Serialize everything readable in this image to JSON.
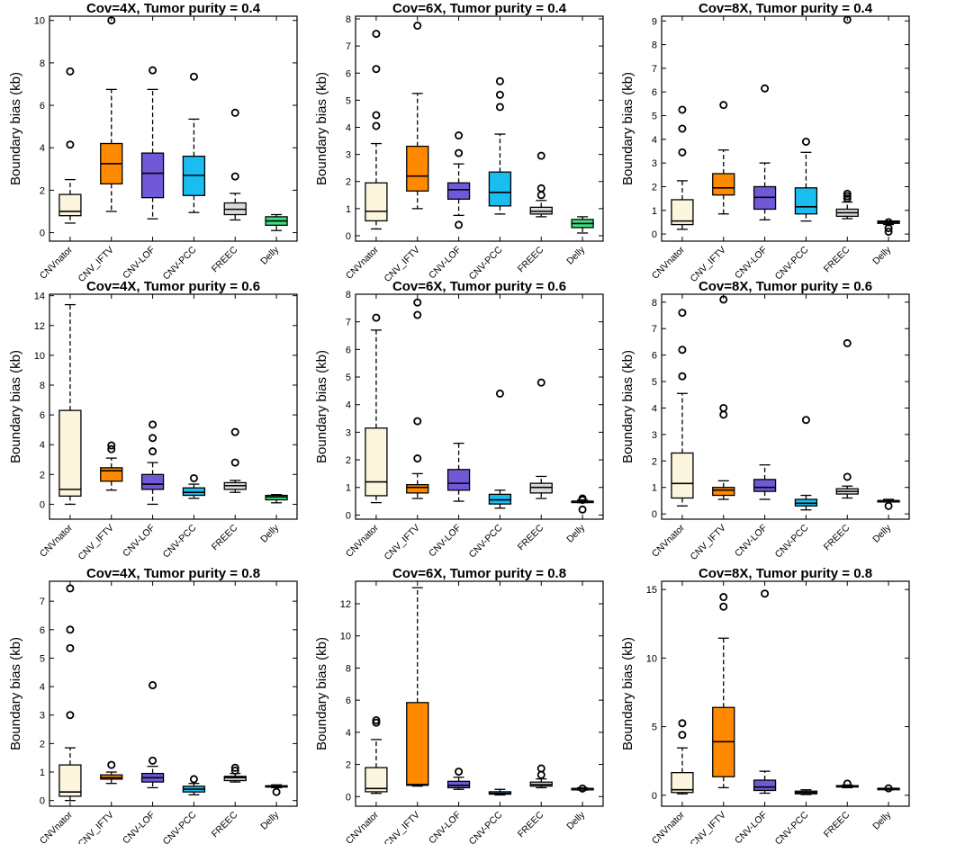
{
  "colors": {
    "CNVnator": "#fdf6df",
    "CNV_IFTV": "#ff8a00",
    "CNV-LOF": "#7158d6",
    "CNV-PCC": "#19bdf0",
    "FREEC": "#dcdcdc",
    "Delly": "#3de07c"
  },
  "chart_data": [
    {
      "type": "box",
      "title": "Cov=4X, Tumor purity = 0.4",
      "ylabel": "Boundary bias (kb)",
      "ylim": [
        -0.4,
        10.2
      ],
      "yticks": [
        0,
        2,
        4,
        6,
        8,
        10
      ],
      "categories": [
        "CNVnator",
        "CNV_IFTV",
        "CNV-LOF",
        "CNV-PCC",
        "FREEC",
        "Delly"
      ],
      "boxes": [
        {
          "min": 0.45,
          "q1": 0.8,
          "median": 1.0,
          "q3": 1.8,
          "max": 2.5,
          "outliers": [
            4.15,
            7.6
          ]
        },
        {
          "min": 1.0,
          "q1": 2.3,
          "median": 3.25,
          "q3": 4.2,
          "max": 6.75,
          "outliers": [
            10.0
          ]
        },
        {
          "min": 0.65,
          "q1": 1.65,
          "median": 2.8,
          "q3": 3.75,
          "max": 6.75,
          "outliers": [
            7.65
          ]
        },
        {
          "min": 0.95,
          "q1": 1.75,
          "median": 2.7,
          "q3": 3.6,
          "max": 5.35,
          "outliers": [
            7.35
          ]
        },
        {
          "min": 0.6,
          "q1": 0.85,
          "median": 1.1,
          "q3": 1.4,
          "max": 1.85,
          "outliers": [
            2.65,
            5.65
          ]
        },
        {
          "min": 0.1,
          "q1": 0.35,
          "median": 0.55,
          "q3": 0.75,
          "max": 0.85,
          "outliers": []
        }
      ]
    },
    {
      "type": "box",
      "title": "Cov=6X, Tumor purity = 0.4",
      "ylabel": "Boundary bias (kb)",
      "ylim": [
        -0.2,
        8.1
      ],
      "yticks": [
        0,
        1,
        2,
        3,
        4,
        5,
        6,
        7,
        8
      ],
      "categories": [
        "CNVnator",
        "CNV_IFTV",
        "CNV-LOF",
        "CNV-PCC",
        "FREEC",
        "Delly"
      ],
      "boxes": [
        {
          "min": 0.25,
          "q1": 0.55,
          "median": 0.9,
          "q3": 1.95,
          "max": 3.4,
          "outliers": [
            4.05,
            4.45,
            6.15,
            7.45
          ]
        },
        {
          "min": 1.0,
          "q1": 1.65,
          "median": 2.2,
          "q3": 3.3,
          "max": 5.25,
          "outliers": [
            7.75
          ]
        },
        {
          "min": 0.75,
          "q1": 1.35,
          "median": 1.7,
          "q3": 1.95,
          "max": 2.65,
          "outliers": [
            0.4,
            3.05,
            3.7
          ]
        },
        {
          "min": 0.8,
          "q1": 1.1,
          "median": 1.6,
          "q3": 2.35,
          "max": 3.75,
          "outliers": [
            4.75,
            5.2,
            5.7
          ]
        },
        {
          "min": 0.7,
          "q1": 0.8,
          "median": 0.9,
          "q3": 1.05,
          "max": 1.3,
          "outliers": [
            1.5,
            1.75,
            2.95
          ]
        },
        {
          "min": 0.1,
          "q1": 0.3,
          "median": 0.45,
          "q3": 0.6,
          "max": 0.7,
          "outliers": []
        }
      ]
    },
    {
      "type": "box",
      "title": "Cov=8X, Tumor purity = 0.4",
      "ylabel": "Boundary bias (kb)",
      "ylim": [
        -0.3,
        9.2
      ],
      "yticks": [
        0,
        1,
        2,
        3,
        4,
        5,
        6,
        7,
        8,
        9
      ],
      "categories": [
        "CNVnator",
        "CNV_IFTV",
        "CNV-LOF",
        "CNV-PCC",
        "FREEC",
        "Delly"
      ],
      "boxes": [
        {
          "min": 0.2,
          "q1": 0.4,
          "median": 0.55,
          "q3": 1.45,
          "max": 2.25,
          "outliers": [
            3.45,
            4.45,
            5.25
          ]
        },
        {
          "min": 0.85,
          "q1": 1.65,
          "median": 1.95,
          "q3": 2.55,
          "max": 3.55,
          "outliers": [
            5.45
          ]
        },
        {
          "min": 0.6,
          "q1": 1.05,
          "median": 1.55,
          "q3": 2.0,
          "max": 3.0,
          "outliers": [
            6.15
          ]
        },
        {
          "min": 0.55,
          "q1": 0.85,
          "median": 1.15,
          "q3": 1.95,
          "max": 3.45,
          "outliers": [
            3.9
          ]
        },
        {
          "min": 0.65,
          "q1": 0.75,
          "median": 0.9,
          "q3": 1.05,
          "max": 1.35,
          "outliers": [
            1.5,
            1.6,
            1.7,
            9.05
          ]
        },
        {
          "min": 0.4,
          "q1": 0.45,
          "median": 0.5,
          "q3": 0.55,
          "max": 0.55,
          "outliers": [
            0.1,
            0.25,
            0.5
          ]
        }
      ]
    },
    {
      "type": "box",
      "title": "Cov=4X, Tumor purity = 0.6",
      "ylabel": "Boundary bias (kb)",
      "ylim": [
        -1.0,
        14.1
      ],
      "yticks": [
        0,
        2,
        4,
        6,
        8,
        10,
        12,
        14
      ],
      "categories": [
        "CNVnator",
        "CNV_IFTV",
        "CNV-LOF",
        "CNV-PCC",
        "FREEC",
        "Delly"
      ],
      "boxes": [
        {
          "min": 0.0,
          "q1": 0.55,
          "median": 1.0,
          "q3": 6.3,
          "max": 13.4,
          "outliers": []
        },
        {
          "min": 0.95,
          "q1": 1.55,
          "median": 2.25,
          "q3": 2.45,
          "max": 3.1,
          "outliers": [
            3.7,
            3.95
          ]
        },
        {
          "min": 0.0,
          "q1": 1.0,
          "median": 1.35,
          "q3": 2.0,
          "max": 2.8,
          "outliers": [
            3.55,
            4.45,
            5.35
          ]
        },
        {
          "min": 0.4,
          "q1": 0.6,
          "median": 0.8,
          "q3": 1.1,
          "max": 1.35,
          "outliers": [
            1.75
          ]
        },
        {
          "min": 0.8,
          "q1": 1.0,
          "median": 1.25,
          "q3": 1.45,
          "max": 1.6,
          "outliers": [
            2.8,
            4.85
          ]
        },
        {
          "min": 0.1,
          "q1": 0.3,
          "median": 0.5,
          "q3": 0.6,
          "max": 0.65,
          "outliers": []
        }
      ]
    },
    {
      "type": "box",
      "title": "Cov=6X, Tumor purity = 0.6",
      "ylabel": "Boundary bias (kb)",
      "ylim": [
        -0.15,
        8.0
      ],
      "yticks": [
        0,
        1,
        2,
        3,
        4,
        5,
        6,
        7,
        8
      ],
      "categories": [
        "CNVnator",
        "CNV_IFTV",
        "CNV-LOF",
        "CNV-PCC",
        "FREEC",
        "Delly"
      ],
      "boxes": [
        {
          "min": 0.45,
          "q1": 0.7,
          "median": 1.2,
          "q3": 3.15,
          "max": 6.7,
          "outliers": [
            7.15
          ]
        },
        {
          "min": 0.6,
          "q1": 0.8,
          "median": 1.0,
          "q3": 1.1,
          "max": 1.5,
          "outliers": [
            2.05,
            3.4,
            7.25,
            7.7
          ]
        },
        {
          "min": 0.5,
          "q1": 0.9,
          "median": 1.15,
          "q3": 1.65,
          "max": 2.6,
          "outliers": []
        },
        {
          "min": 0.25,
          "q1": 0.4,
          "median": 0.55,
          "q3": 0.75,
          "max": 0.9,
          "outliers": [
            4.4
          ]
        },
        {
          "min": 0.6,
          "q1": 0.8,
          "median": 1.0,
          "q3": 1.15,
          "max": 1.4,
          "outliers": [
            4.8
          ]
        },
        {
          "min": 0.45,
          "q1": 0.5,
          "median": 0.5,
          "q3": 0.5,
          "max": 0.55,
          "outliers": [
            0.2,
            0.55,
            0.6
          ]
        }
      ]
    },
    {
      "type": "box",
      "title": "Cov=8X, Tumor purity = 0.6",
      "ylabel": "Boundary bias (kb)",
      "ylim": [
        -0.2,
        8.3
      ],
      "yticks": [
        0,
        1,
        2,
        3,
        4,
        5,
        6,
        7,
        8
      ],
      "categories": [
        "CNVnator",
        "CNV_IFTV",
        "CNV-LOF",
        "CNV-PCC",
        "FREEC",
        "Delly"
      ],
      "boxes": [
        {
          "min": 0.3,
          "q1": 0.6,
          "median": 1.15,
          "q3": 2.3,
          "max": 4.55,
          "outliers": [
            5.2,
            6.2,
            7.6
          ]
        },
        {
          "min": 0.55,
          "q1": 0.7,
          "median": 0.9,
          "q3": 1.0,
          "max": 1.25,
          "outliers": [
            3.75,
            4.0,
            8.1
          ]
        },
        {
          "min": 0.55,
          "q1": 0.85,
          "median": 1.0,
          "q3": 1.3,
          "max": 1.85,
          "outliers": []
        },
        {
          "min": 0.15,
          "q1": 0.3,
          "median": 0.4,
          "q3": 0.55,
          "max": 0.7,
          "outliers": [
            3.55
          ]
        },
        {
          "min": 0.6,
          "q1": 0.75,
          "median": 0.85,
          "q3": 0.95,
          "max": 1.05,
          "outliers": [
            1.4,
            6.45
          ]
        },
        {
          "min": 0.45,
          "q1": 0.5,
          "median": 0.5,
          "q3": 0.5,
          "max": 0.55,
          "outliers": [
            0.3
          ]
        }
      ]
    },
    {
      "type": "box",
      "title": "Cov=4X, Tumor purity = 0.8",
      "ylabel": "Boundary bias (kb)",
      "ylim": [
        -0.2,
        7.7
      ],
      "yticks": [
        0,
        1,
        2,
        3,
        4,
        5,
        6,
        7
      ],
      "categories": [
        "CNVnator",
        "CNV_IFTV",
        "CNV-LOF",
        "CNV-PCC",
        "FREEC",
        "Delly"
      ],
      "boxes": [
        {
          "min": 0.0,
          "q1": 0.15,
          "median": 0.3,
          "q3": 1.25,
          "max": 1.85,
          "outliers": [
            3.0,
            5.35,
            6.0,
            7.45
          ]
        },
        {
          "min": 0.6,
          "q1": 0.75,
          "median": 0.8,
          "q3": 0.9,
          "max": 1.0,
          "outliers": [
            1.25
          ]
        },
        {
          "min": 0.45,
          "q1": 0.65,
          "median": 0.8,
          "q3": 0.95,
          "max": 1.2,
          "outliers": [
            1.4,
            4.05
          ]
        },
        {
          "min": 0.2,
          "q1": 0.3,
          "median": 0.4,
          "q3": 0.5,
          "max": 0.6,
          "outliers": [
            0.75
          ]
        },
        {
          "min": 0.65,
          "q1": 0.7,
          "median": 0.8,
          "q3": 0.85,
          "max": 0.95,
          "outliers": [
            1.05,
            1.15
          ]
        },
        {
          "min": 0.45,
          "q1": 0.48,
          "median": 0.5,
          "q3": 0.52,
          "max": 0.55,
          "outliers": [
            0.3
          ]
        }
      ]
    },
    {
      "type": "box",
      "title": "Cov=6X, Tumor purity = 0.8",
      "ylabel": "Boundary bias (kb)",
      "ylim": [
        -0.6,
        13.4
      ],
      "yticks": [
        0,
        2,
        4,
        6,
        8,
        10,
        12
      ],
      "categories": [
        "CNVnator",
        "CNV_IFTV",
        "CNV-LOF",
        "CNV-PCC",
        "FREEC",
        "Delly"
      ],
      "boxes": [
        {
          "min": 0.2,
          "q1": 0.3,
          "median": 0.5,
          "q3": 1.8,
          "max": 3.55,
          "outliers": [
            4.6,
            4.75
          ]
        },
        {
          "min": 0.65,
          "q1": 0.7,
          "median": 0.75,
          "q3": 5.85,
          "max": 13.0,
          "outliers": []
        },
        {
          "min": 0.45,
          "q1": 0.55,
          "median": 0.7,
          "q3": 0.95,
          "max": 1.2,
          "outliers": [
            1.55
          ]
        },
        {
          "min": 0.1,
          "q1": 0.15,
          "median": 0.2,
          "q3": 0.3,
          "max": 0.45,
          "outliers": []
        },
        {
          "min": 0.55,
          "q1": 0.65,
          "median": 0.75,
          "q3": 0.9,
          "max": 1.1,
          "outliers": [
            1.35,
            1.75
          ]
        },
        {
          "min": 0.4,
          "q1": 0.45,
          "median": 0.5,
          "q3": 0.5,
          "max": 0.55,
          "outliers": [
            0.5
          ]
        }
      ]
    },
    {
      "type": "box",
      "title": "Cov=8X, Tumor purity = 0.8",
      "ylabel": "Boundary bias (kb)",
      "ylim": [
        -0.8,
        15.6
      ],
      "yticks": [
        0,
        5,
        10,
        15
      ],
      "categories": [
        "CNVnator",
        "CNV_IFTV",
        "CNV-LOF",
        "CNV-PCC",
        "FREEC",
        "Delly"
      ],
      "boxes": [
        {
          "min": 0.1,
          "q1": 0.2,
          "median": 0.4,
          "q3": 1.65,
          "max": 3.45,
          "outliers": [
            4.4,
            5.25
          ]
        },
        {
          "min": 0.55,
          "q1": 1.35,
          "median": 3.9,
          "q3": 6.4,
          "max": 11.45,
          "outliers": [
            13.75,
            14.45
          ]
        },
        {
          "min": 0.15,
          "q1": 0.35,
          "median": 0.6,
          "q3": 1.1,
          "max": 1.75,
          "outliers": [
            14.7
          ]
        },
        {
          "min": 0.05,
          "q1": 0.1,
          "median": 0.2,
          "q3": 0.3,
          "max": 0.4,
          "outliers": []
        },
        {
          "min": 0.55,
          "q1": 0.6,
          "median": 0.65,
          "q3": 0.7,
          "max": 0.75,
          "outliers": [
            0.85
          ]
        },
        {
          "min": 0.4,
          "q1": 0.45,
          "median": 0.5,
          "q3": 0.5,
          "max": 0.5,
          "outliers": [
            0.5
          ]
        }
      ]
    }
  ]
}
